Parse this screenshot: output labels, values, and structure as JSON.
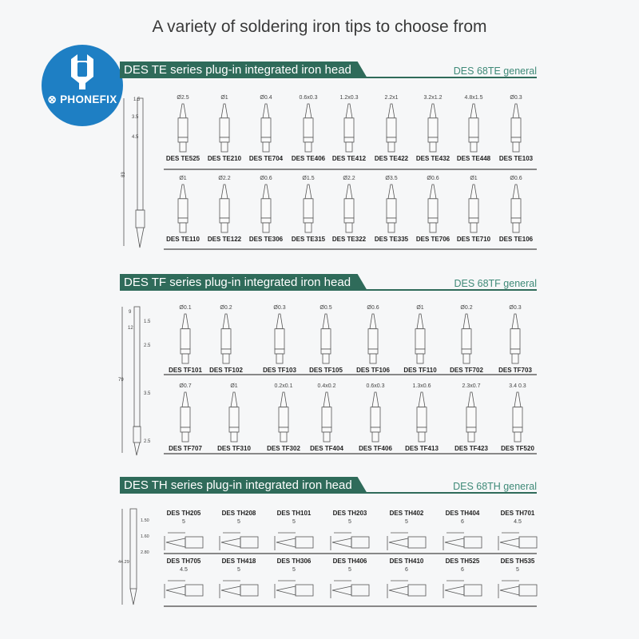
{
  "title": "A variety of soldering iron tips to choose from",
  "logo": {
    "text": "PHONEFIX",
    "color": "#1e7fc4"
  },
  "accent": "#2f6b5a",
  "sections": [
    {
      "header": "DES TE series plug-in integrated iron head",
      "general": "DES 68TE general",
      "handle_dims": [
        "1.5",
        "3.5",
        "4.5",
        "83"
      ],
      "rows": [
        [
          {
            "name": "DES TE525",
            "dim": "Ø2.5"
          },
          {
            "name": "DES TE210",
            "dim": "Ø1"
          },
          {
            "name": "DES TE704",
            "dim": "Ø0.4"
          },
          {
            "name": "DES TE406",
            "dim": "0.6x0.3"
          },
          {
            "name": "DES TE412",
            "dim": "1.2x0.3"
          },
          {
            "name": "DES TE422",
            "dim": "2.2x1"
          },
          {
            "name": "DES TE432",
            "dim": "3.2x1.2"
          },
          {
            "name": "DES TE448",
            "dim": "4.8x1.5"
          },
          {
            "name": "DES TE103",
            "dim": "Ø0.3"
          }
        ],
        [
          {
            "name": "DES TE110",
            "dim": "Ø1"
          },
          {
            "name": "DES TE122",
            "dim": "Ø2.2"
          },
          {
            "name": "DES TE306",
            "dim": "Ø0.6"
          },
          {
            "name": "DES TE315",
            "dim": "Ø1.5"
          },
          {
            "name": "DES TE322",
            "dim": "Ø2.2"
          },
          {
            "name": "DES TE335",
            "dim": "Ø3.5"
          },
          {
            "name": "DES TE706",
            "dim": "Ø0.6"
          },
          {
            "name": "DES TE710",
            "dim": "Ø1"
          },
          {
            "name": "DES TE106",
            "dim": "Ø0.6"
          }
        ]
      ]
    },
    {
      "header": "DES TF series plug-in integrated iron head",
      "general": "DES 68TF general",
      "handle_dims": [
        "9",
        "1.5",
        "12",
        "2.5",
        "79",
        "3.5",
        "2.5"
      ],
      "rows": [
        [
          {
            "name": "DES TF101",
            "dim": "Ø0.1"
          },
          {
            "name": "DES TF102",
            "dim": "Ø0.2"
          },
          {
            "name": "DES TF103",
            "dim": "Ø0.3"
          },
          {
            "name": "DES TF105",
            "dim": "Ø0.5"
          },
          {
            "name": "DES TF106",
            "dim": "Ø0.6"
          },
          {
            "name": "DES TF110",
            "dim": "Ø1"
          },
          {
            "name": "DES TF702",
            "dim": "Ø0.2"
          },
          {
            "name": "DES TF703",
            "dim": "Ø0.3"
          }
        ],
        [
          {
            "name": "DES TF707",
            "dim": "Ø0.7"
          },
          {
            "name": "DES TF310",
            "dim": "Ø1"
          },
          {
            "name": "DES TF302",
            "dim": "0.2x0.1"
          },
          {
            "name": "DES TF404",
            "dim": "0.4x0.2"
          },
          {
            "name": "DES TF406",
            "dim": "0.6x0.3"
          },
          {
            "name": "DES TF413",
            "dim": "1.3x0.6"
          },
          {
            "name": "DES TF423",
            "dim": "2.3x0.7"
          },
          {
            "name": "DES TF520",
            "dim": "3.4   0.3"
          }
        ]
      ]
    },
    {
      "header": "DES TH series plug-in integrated iron head",
      "general": "DES 68TH general",
      "handle_dims": [
        "1.50",
        "1.60",
        "2.80",
        "44.29"
      ],
      "rows": [
        [
          {
            "name": "DES TH205",
            "dim": "5"
          },
          {
            "name": "DES TH208",
            "dim": "5"
          },
          {
            "name": "DES TH101",
            "dim": "5"
          },
          {
            "name": "DES TH203",
            "dim": "5"
          },
          {
            "name": "DES TH402",
            "dim": "5"
          },
          {
            "name": "DES TH404",
            "dim": "6"
          },
          {
            "name": "DES TH701",
            "dim": "4.5"
          }
        ],
        [
          {
            "name": "DES TH705",
            "dim": "4.5"
          },
          {
            "name": "DES TH418",
            "dim": "5"
          },
          {
            "name": "DES TH306",
            "dim": "5"
          },
          {
            "name": "DES TH406",
            "dim": "5"
          },
          {
            "name": "DES TH410",
            "dim": "6"
          },
          {
            "name": "DES TH525",
            "dim": "6"
          },
          {
            "name": "DES TH535",
            "dim": "5"
          }
        ]
      ]
    }
  ]
}
